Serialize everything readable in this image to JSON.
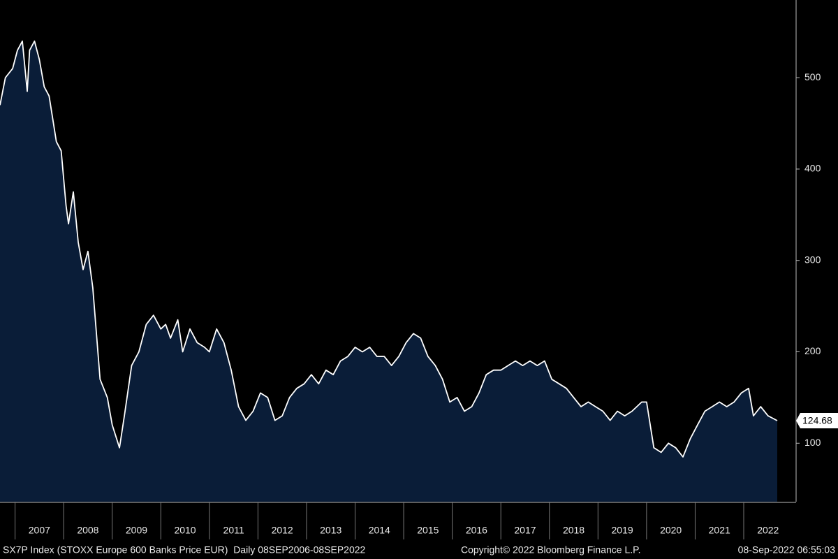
{
  "chart_data": {
    "type": "area",
    "x": [
      2006.69,
      2006.8,
      2006.95,
      2007.05,
      2007.15,
      2007.25,
      2007.3,
      2007.4,
      2007.5,
      2007.6,
      2007.7,
      2007.85,
      2007.95,
      2008.05,
      2008.1,
      2008.2,
      2008.3,
      2008.4,
      2008.5,
      2008.6,
      2008.75,
      2008.9,
      2009.0,
      2009.15,
      2009.25,
      2009.4,
      2009.55,
      2009.7,
      2009.85,
      2010.0,
      2010.1,
      2010.2,
      2010.35,
      2010.45,
      2010.6,
      2010.75,
      2010.9,
      2011.0,
      2011.15,
      2011.3,
      2011.45,
      2011.6,
      2011.75,
      2011.9,
      2012.05,
      2012.2,
      2012.35,
      2012.5,
      2012.65,
      2012.8,
      2012.95,
      2013.1,
      2013.25,
      2013.4,
      2013.55,
      2013.7,
      2013.85,
      2014.0,
      2014.15,
      2014.3,
      2014.45,
      2014.6,
      2014.75,
      2014.9,
      2015.05,
      2015.2,
      2015.35,
      2015.5,
      2015.65,
      2015.8,
      2015.95,
      2016.1,
      2016.25,
      2016.4,
      2016.55,
      2016.7,
      2016.85,
      2017.0,
      2017.15,
      2017.3,
      2017.45,
      2017.6,
      2017.75,
      2017.9,
      2018.05,
      2018.2,
      2018.35,
      2018.5,
      2018.65,
      2018.8,
      2018.95,
      2019.1,
      2019.25,
      2019.4,
      2019.55,
      2019.7,
      2019.9,
      2020.0,
      2020.15,
      2020.3,
      2020.45,
      2020.6,
      2020.75,
      2020.9,
      2021.05,
      2021.2,
      2021.35,
      2021.5,
      2021.65,
      2021.8,
      2021.95,
      2022.1,
      2022.2,
      2022.35,
      2022.5,
      2022.69
    ],
    "series": [
      {
        "name": "SX7P Index",
        "color": "#ffffff",
        "fill": "#0a1d38",
        "values": [
          470,
          500,
          510,
          530,
          540,
          485,
          530,
          540,
          520,
          490,
          480,
          430,
          420,
          360,
          340,
          375,
          320,
          290,
          310,
          270,
          170,
          150,
          120,
          95,
          130,
          185,
          200,
          230,
          240,
          225,
          230,
          215,
          235,
          200,
          225,
          210,
          205,
          200,
          225,
          210,
          180,
          140,
          125,
          135,
          155,
          150,
          125,
          130,
          150,
          160,
          165,
          175,
          165,
          180,
          175,
          190,
          195,
          205,
          200,
          205,
          195,
          195,
          185,
          195,
          210,
          220,
          215,
          195,
          185,
          170,
          145,
          150,
          135,
          140,
          155,
          175,
          180,
          180,
          185,
          190,
          185,
          190,
          185,
          190,
          170,
          165,
          160,
          150,
          140,
          145,
          140,
          135,
          125,
          135,
          130,
          135,
          145,
          145,
          95,
          90,
          100,
          95,
          85,
          105,
          120,
          135,
          140,
          145,
          140,
          145,
          155,
          160,
          130,
          140,
          130,
          124.68
        ]
      }
    ],
    "last_value_label": "124.68",
    "xlim": [
      2006.69,
      2022.69
    ],
    "xticks": [
      2007,
      2008,
      2009,
      2010,
      2011,
      2012,
      2013,
      2014,
      2015,
      2016,
      2017,
      2018,
      2019,
      2020,
      2021,
      2022
    ],
    "ylim": [
      36,
      585
    ],
    "yticks": [
      100,
      200,
      300,
      400,
      500
    ],
    "footer": {
      "left": "SX7P Index (STOXX Europe 600 Banks Price EUR)  Daily 08SEP2006-08SEP2022",
      "center": "Copyright© 2022 Bloomberg Finance L.P.",
      "right": "08-Sep-2022 06:55:03"
    }
  }
}
